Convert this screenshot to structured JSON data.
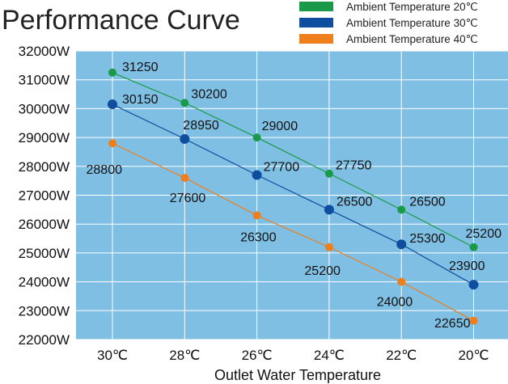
{
  "chart_data": {
    "type": "line",
    "title": "Performance Curve",
    "xlabel": "Outlet Water Temperature",
    "ylabel": "",
    "categories": [
      "30℃",
      "28℃",
      "26℃",
      "24℃",
      "22℃",
      "20℃"
    ],
    "y_ticks": [
      "22000W",
      "23000W",
      "24000W",
      "25000W",
      "26000W",
      "27000W",
      "28000W",
      "29000W",
      "30000W",
      "31000W",
      "32000W"
    ],
    "ylim": [
      22000,
      32000
    ],
    "grid": true,
    "legend_position": "top-right",
    "series": [
      {
        "name": "Ambient Temperature 20℃",
        "color": "#1a9a48",
        "values": [
          31250,
          30200,
          29000,
          27750,
          26500,
          25200
        ]
      },
      {
        "name": "Ambient Temperature 30℃",
        "color": "#0f4e9e",
        "values": [
          30150,
          28950,
          27700,
          26500,
          25300,
          23900
        ]
      },
      {
        "name": "Ambient Temperature 40℃",
        "color": "#ee7f1c",
        "values": [
          28800,
          27600,
          26300,
          25200,
          24000,
          22650
        ]
      }
    ],
    "plot_background": "#7fbfe3"
  }
}
